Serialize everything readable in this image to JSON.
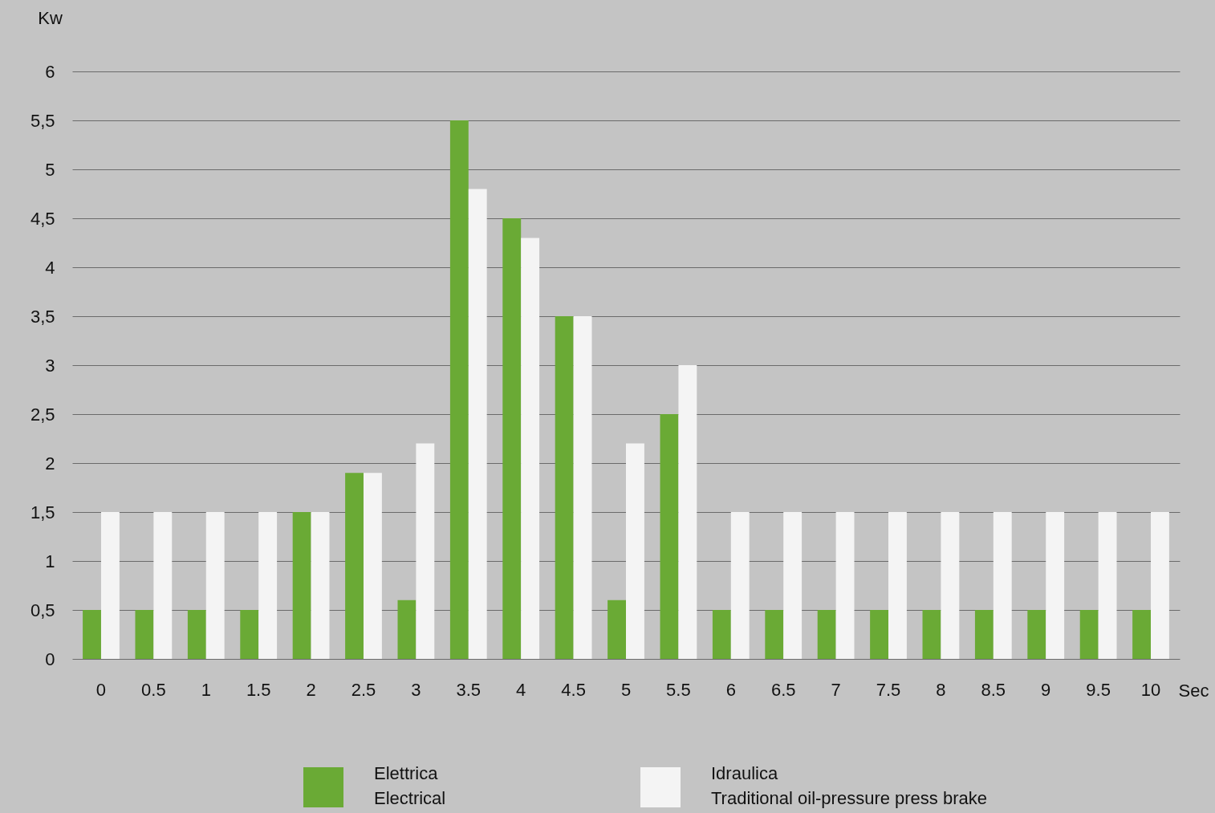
{
  "chart_data": {
    "type": "bar",
    "xlabel": "Sec",
    "ylabel": "Kw",
    "categories": [
      "0",
      "0.5",
      "1",
      "1.5",
      "2",
      "2.5",
      "3",
      "3.5",
      "4",
      "4.5",
      "5",
      "5.5",
      "6",
      "6.5",
      "7",
      "7.5",
      "8",
      "8.5",
      "9",
      "9.5",
      "10"
    ],
    "series": [
      {
        "name": "Elettrica\nElectrical",
        "color": "#6aaa35",
        "values": [
          0.5,
          0.5,
          0.5,
          0.5,
          1.5,
          1.9,
          0.6,
          5.5,
          4.5,
          3.5,
          0.6,
          2.5,
          0.5,
          0.5,
          0.5,
          0.5,
          0.5,
          0.5,
          0.5,
          0.5,
          0.5
        ]
      },
      {
        "name": "Idraulica\nTraditional oil-pressure press brake",
        "color": "#f4f4f4",
        "values": [
          1.5,
          1.5,
          1.5,
          1.5,
          1.5,
          1.9,
          2.2,
          4.8,
          4.3,
          3.5,
          2.2,
          3.0,
          1.5,
          1.5,
          1.5,
          1.5,
          1.5,
          1.5,
          1.5,
          1.5,
          1.5
        ]
      }
    ],
    "ylim": [
      0,
      6
    ],
    "yticks": [
      0,
      {
        "value": 0.5,
        "label": "0,5"
      },
      1,
      {
        "value": 1.5,
        "label": "1,5"
      },
      2,
      {
        "value": 2.5,
        "label": "2,5"
      },
      3,
      {
        "value": 3.5,
        "label": "3,5"
      },
      4,
      {
        "value": 4.5,
        "label": "4,5"
      },
      5,
      {
        "value": 5.5,
        "label": "5,5"
      },
      6
    ],
    "grid": "y",
    "legend": "bottom"
  }
}
